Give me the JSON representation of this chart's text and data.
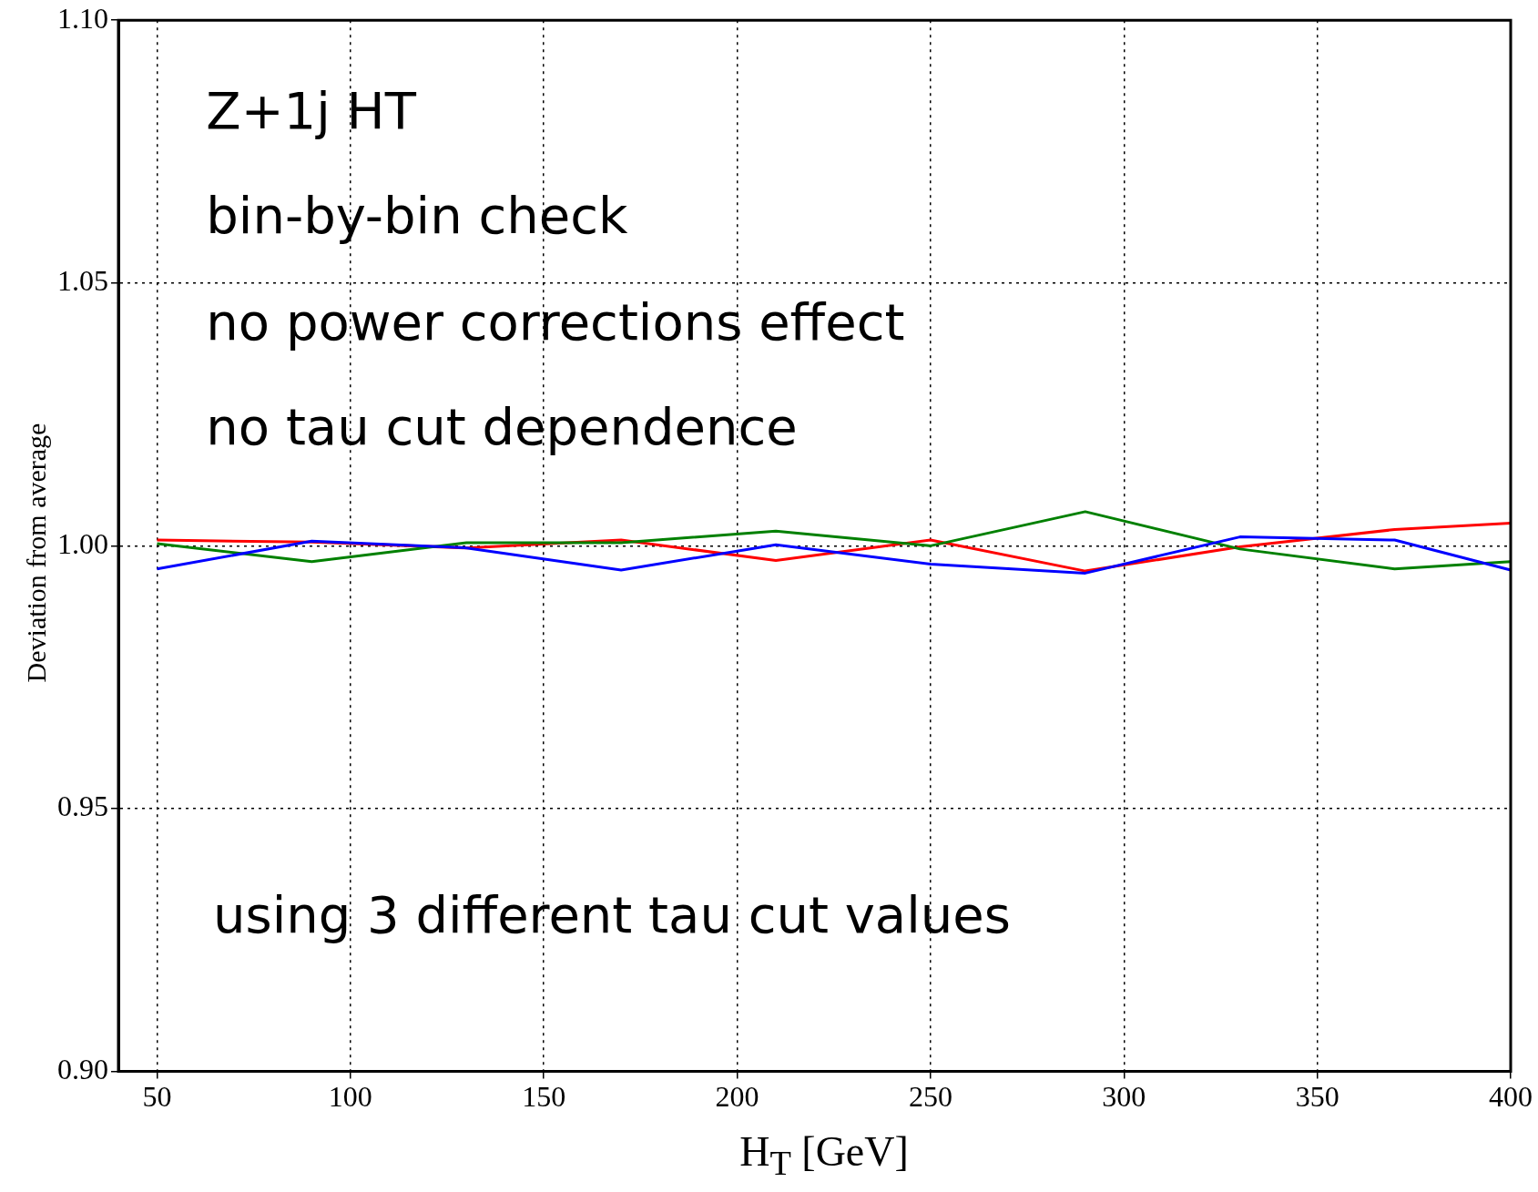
{
  "chart_data": {
    "type": "line",
    "xlabel": "H$_{T}$ [GeV]",
    "ylabel": "Deviation from average",
    "x": [
      50,
      90,
      130,
      170,
      210,
      250,
      290,
      330,
      370,
      400
    ],
    "series": [
      {
        "color": "#0000ff",
        "values": [
          0.9956,
          1.0009,
          0.9996,
          0.9954,
          1.0002,
          0.9965,
          0.9948,
          1.0017,
          1.0011,
          0.9954
        ]
      },
      {
        "color": "#008000",
        "values": [
          1.0004,
          0.997,
          1.0006,
          1.0006,
          1.0028,
          1.0,
          1.0065,
          0.9994,
          0.9956,
          0.997
        ]
      },
      {
        "color": "#ff0000",
        "values": [
          1.0011,
          1.0007,
          0.9996,
          1.0011,
          0.9972,
          1.0011,
          0.9952,
          0.9998,
          1.0031,
          1.0043
        ]
      }
    ],
    "xlim": [
      40,
      400
    ],
    "xticks": [
      50,
      100,
      150,
      200,
      250,
      300,
      350,
      400
    ],
    "ylim": [
      0.9,
      1.1
    ],
    "yticks": [
      {
        "value": 0.9,
        "label": "0.90"
      },
      {
        "value": 0.95,
        "label": "0.95"
      },
      {
        "value": 1.0,
        "label": "1.00"
      },
      {
        "value": 1.05,
        "label": "1.05"
      },
      {
        "value": 1.1,
        "label": "1.10"
      }
    ],
    "grid": true,
    "legend": false,
    "marker": "none",
    "line_style": "solid",
    "annotations": [
      "Z+1j HT",
      "bin-by-bin check",
      "no power corrections effect",
      "no tau cut dependence",
      "using 3 different tau cut values"
    ]
  }
}
